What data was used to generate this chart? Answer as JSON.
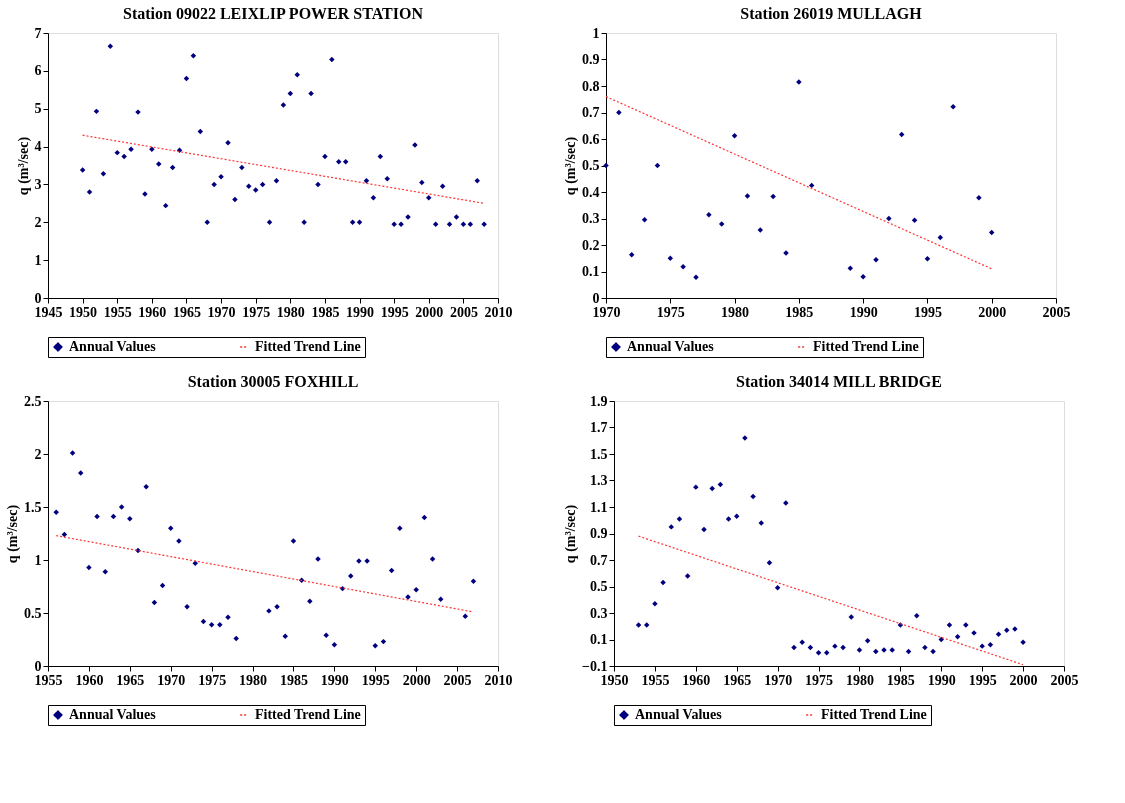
{
  "chart_data": [
    {
      "type": "scatter",
      "title": "Station 09022 LEIXLIP POWER STATION",
      "ylabel": "q (m³/sec)",
      "xlim": [
        1945,
        2010
      ],
      "xticks": [
        1945,
        1950,
        1955,
        1960,
        1965,
        1970,
        1975,
        1980,
        1985,
        1990,
        1995,
        2000,
        2005,
        2010
      ],
      "ylim": [
        0,
        7
      ],
      "yticks": [
        0,
        1,
        2,
        3,
        4,
        5,
        6,
        7
      ],
      "grid": false,
      "legend": "bottom",
      "series": [
        {
          "name": "Annual Values",
          "marker": "diamond",
          "color": "#00007f",
          "x": [
            1950,
            1951,
            1952,
            1953,
            1954,
            1955,
            1956,
            1957,
            1958,
            1959,
            1960,
            1961,
            1962,
            1963,
            1964,
            1965,
            1966,
            1967,
            1968,
            1969,
            1970,
            1971,
            1972,
            1973,
            1974,
            1975,
            1976,
            1977,
            1978,
            1979,
            1980,
            1981,
            1982,
            1983,
            1984,
            1985,
            1986,
            1987,
            1988,
            1989,
            1990,
            1991,
            1992,
            1993,
            1994,
            1995,
            1996,
            1997,
            1998,
            1999,
            2000,
            2001,
            2002,
            2003,
            2004,
            2005,
            2006,
            2007,
            2008
          ],
          "values": [
            3.38,
            2.8,
            4.93,
            3.28,
            6.65,
            3.84,
            3.74,
            3.93,
            4.91,
            2.75,
            3.93,
            3.54,
            2.44,
            3.45,
            3.9,
            5.8,
            6.4,
            4.4,
            2.0,
            3.0,
            3.2,
            4.1,
            2.6,
            3.45,
            2.95,
            2.85,
            3.0,
            2.0,
            3.1,
            5.1,
            5.4,
            5.9,
            2.0,
            5.4,
            3.0,
            3.74,
            6.3,
            3.6,
            3.6,
            2.0,
            2.0,
            3.1,
            2.65,
            3.74,
            3.15,
            1.95,
            1.95,
            2.14,
            4.04,
            3.05,
            2.65,
            1.95,
            2.95,
            1.95,
            2.14,
            1.95,
            1.95,
            3.1,
            1.95
          ]
        },
        {
          "name": "Fitted Trend Line",
          "type": "line",
          "line_style": "dotted",
          "color": "#ff3333",
          "x": [
            1950,
            2008
          ],
          "values": [
            4.3,
            2.5
          ]
        }
      ]
    },
    {
      "type": "scatter",
      "title": "Station 26019 MULLAGH",
      "ylabel": "q (m³/sec)",
      "xlim": [
        1970,
        2005
      ],
      "xticks": [
        1970,
        1975,
        1980,
        1985,
        1990,
        1995,
        2000,
        2005
      ],
      "ylim": [
        0,
        1
      ],
      "yticks": [
        0,
        0.1,
        0.2,
        0.3,
        0.4,
        0.5,
        0.6,
        0.7,
        0.8,
        0.9,
        1
      ],
      "grid": false,
      "legend": "bottom",
      "series": [
        {
          "name": "Annual Values",
          "marker": "diamond",
          "color": "#00007f",
          "x": [
            1970,
            1971,
            1972,
            1973,
            1974,
            1975,
            1976,
            1977,
            1978,
            1979,
            1980,
            1981,
            1982,
            1983,
            1984,
            1985,
            1986,
            1989,
            1990,
            1991,
            1992,
            1993,
            1994,
            1995,
            1996,
            1997,
            1999,
            2000
          ],
          "values": [
            0.5,
            0.7,
            0.163,
            0.295,
            0.5,
            0.15,
            0.118,
            0.078,
            0.314,
            0.279,
            0.612,
            0.385,
            0.257,
            0.383,
            0.17,
            0.815,
            0.425,
            0.112,
            0.08,
            0.144,
            0.3,
            0.617,
            0.293,
            0.148,
            0.228,
            0.722,
            0.378,
            0.247
          ]
        },
        {
          "name": "Fitted Trend Line",
          "type": "line",
          "line_style": "dotted",
          "color": "#ff3333",
          "x": [
            1970,
            2000
          ],
          "values": [
            0.76,
            0.11
          ]
        }
      ]
    },
    {
      "type": "scatter",
      "title": "Station 30005 FOXHILL",
      "ylabel": "q (m³/sec)",
      "xlim": [
        1955,
        2010
      ],
      "xticks": [
        1955,
        1960,
        1965,
        1970,
        1975,
        1980,
        1985,
        1990,
        1995,
        2000,
        2005,
        2010
      ],
      "ylim": [
        0,
        2.5
      ],
      "yticks": [
        0,
        0.5,
        1,
        1.5,
        2,
        2.5
      ],
      "grid": false,
      "legend": "bottom",
      "series": [
        {
          "name": "Annual Values",
          "marker": "diamond",
          "color": "#00007f",
          "x": [
            1956,
            1957,
            1958,
            1959,
            1960,
            1961,
            1962,
            1963,
            1964,
            1965,
            1966,
            1967,
            1968,
            1969,
            1970,
            1971,
            1972,
            1973,
            1974,
            1975,
            1976,
            1977,
            1978,
            1982,
            1983,
            1984,
            1985,
            1986,
            1987,
            1988,
            1989,
            1990,
            1991,
            1992,
            1993,
            1994,
            1995,
            1996,
            1997,
            1998,
            1999,
            2000,
            2001,
            2002,
            2003,
            2006,
            2007
          ],
          "values": [
            1.45,
            1.24,
            2.01,
            1.82,
            0.93,
            1.41,
            0.89,
            1.41,
            1.5,
            1.39,
            1.09,
            1.69,
            0.6,
            0.76,
            1.3,
            1.18,
            0.56,
            0.97,
            0.42,
            0.39,
            0.39,
            0.46,
            0.26,
            0.52,
            0.56,
            0.28,
            1.18,
            0.81,
            0.61,
            1.01,
            0.29,
            0.2,
            0.73,
            0.85,
            0.99,
            0.99,
            0.19,
            0.23,
            0.9,
            1.3,
            0.65,
            0.72,
            1.4,
            1.01,
            0.63,
            0.47,
            0.8
          ]
        },
        {
          "name": "Fitted Trend Line",
          "type": "line",
          "line_style": "dotted",
          "color": "#ff3333",
          "x": [
            1956,
            2007
          ],
          "values": [
            1.23,
            0.51
          ]
        }
      ]
    },
    {
      "type": "scatter",
      "title": "Station 34014 MILL BRIDGE",
      "ylabel": "q (m³/sec)",
      "xlim": [
        1950,
        2005
      ],
      "xticks": [
        1950,
        1955,
        1960,
        1965,
        1970,
        1975,
        1980,
        1985,
        1990,
        1995,
        2000,
        2005
      ],
      "ylim": [
        -0.1,
        1.9
      ],
      "yticks": [
        -0.1,
        0.1,
        0.3,
        0.5,
        0.7,
        0.9,
        1.1,
        1.3,
        1.5,
        1.7,
        1.9
      ],
      "grid": false,
      "legend": "bottom",
      "series": [
        {
          "name": "Annual Values",
          "marker": "diamond",
          "color": "#00007f",
          "x": [
            1953,
            1954,
            1955,
            1956,
            1957,
            1958,
            1959,
            1960,
            1961,
            1962,
            1963,
            1964,
            1965,
            1966,
            1967,
            1968,
            1969,
            1970,
            1971,
            1972,
            1973,
            1974,
            1975,
            1976,
            1977,
            1978,
            1979,
            1980,
            1981,
            1982,
            1983,
            1984,
            1985,
            1986,
            1987,
            1988,
            1989,
            1990,
            1991,
            1992,
            1993,
            1994,
            1995,
            1996,
            1997,
            1998,
            1999,
            2000
          ],
          "values": [
            0.21,
            0.21,
            0.37,
            0.53,
            0.95,
            1.01,
            0.58,
            1.25,
            0.93,
            1.24,
            1.27,
            1.01,
            1.03,
            1.62,
            1.18,
            0.98,
            0.68,
            0.49,
            1.13,
            0.04,
            0.08,
            0.04,
            0.0,
            0.0,
            0.05,
            0.04,
            0.27,
            0.02,
            0.09,
            0.01,
            0.02,
            0.02,
            0.21,
            0.01,
            0.28,
            0.04,
            0.01,
            0.1,
            0.21,
            0.12,
            0.21,
            0.15,
            0.05,
            0.06,
            0.14,
            0.17,
            0.18,
            0.08
          ]
        },
        {
          "name": "Fitted Trend Line",
          "type": "line",
          "line_style": "dotted",
          "color": "#ff3333",
          "x": [
            1953,
            2000
          ],
          "values": [
            0.88,
            -0.09
          ]
        }
      ]
    }
  ]
}
